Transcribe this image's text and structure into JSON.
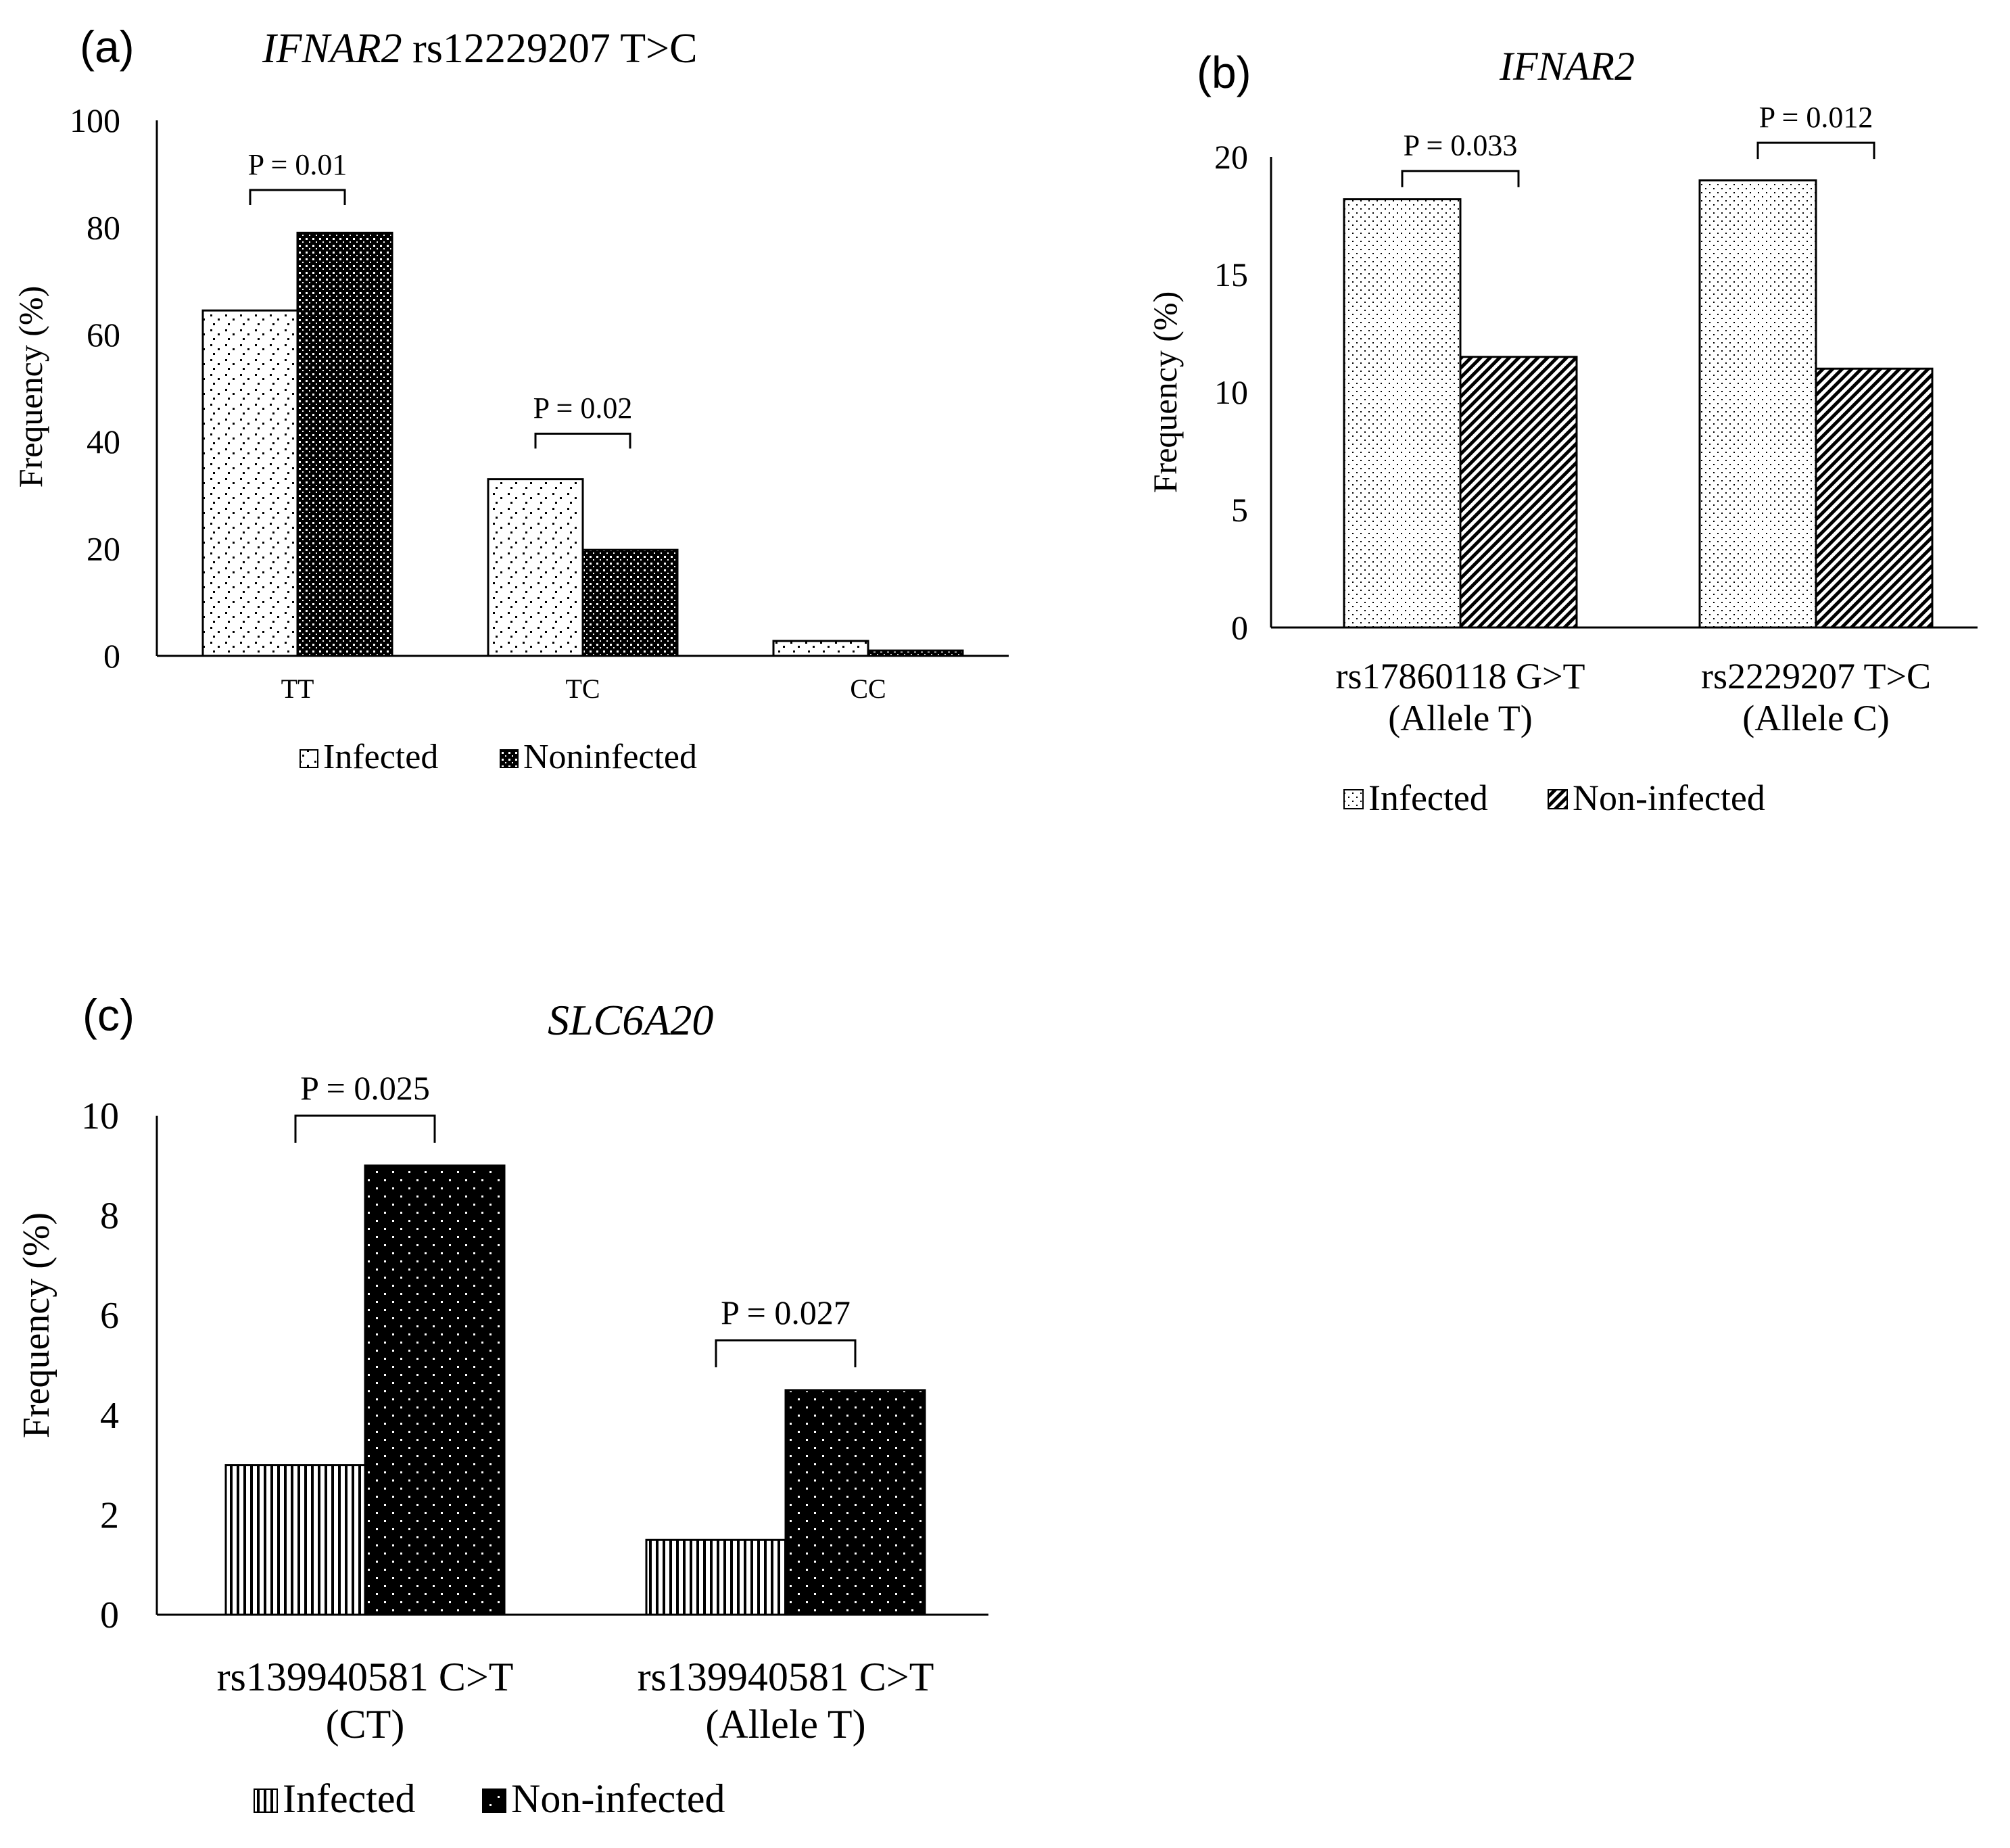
{
  "figure": {
    "colors": {
      "ink": "#000000",
      "paper": "#ffffff"
    }
  },
  "chart_data": [
    {
      "panel": "(a)",
      "type": "bar",
      "title_gene": "IFNAR2",
      "title_rest": " rs12229207 T>C",
      "xlabel": "",
      "ylabel": "Frequency (%)",
      "ylim": [
        0,
        100
      ],
      "yticks": [
        0,
        20,
        40,
        60,
        80,
        100
      ],
      "categories": [
        "TT",
        "TC",
        "CC"
      ],
      "series": [
        {
          "name": "Infected",
          "pattern": "a-infected",
          "values": [
            64.5,
            33,
            2.8
          ]
        },
        {
          "name": "Noninfected",
          "pattern": "a-noninfected",
          "values": [
            79,
            19.8,
            1
          ]
        }
      ],
      "annotations": [
        {
          "category": 0,
          "label": "P = 0.01",
          "bracket_top": 87
        },
        {
          "category": 1,
          "label": "P = 0.02",
          "bracket_top": 41.5
        }
      ],
      "legend": "bottom"
    },
    {
      "panel": "(b)",
      "type": "bar",
      "title_gene": "IFNAR2",
      "title_rest": "",
      "xlabel": "",
      "ylabel": "Frequency (%)",
      "ylim": [
        0,
        20
      ],
      "yticks": [
        0,
        5,
        10,
        15,
        20
      ],
      "categories": [
        [
          "rs17860118 G>T",
          "(Allele T)"
        ],
        [
          "rs2229207 T>C",
          "(Allele C)"
        ]
      ],
      "series": [
        {
          "name": "Infected",
          "pattern": "b-infected",
          "values": [
            18.2,
            19
          ]
        },
        {
          "name": "Non-infected",
          "pattern": "b-noninfected",
          "values": [
            11.5,
            11
          ]
        }
      ],
      "annotations": [
        {
          "category": 0,
          "label": "P = 0.033",
          "bracket_top": 19.4
        },
        {
          "category": 1,
          "label": "P = 0.012",
          "bracket_top": 20.6
        }
      ],
      "legend": "bottom"
    },
    {
      "panel": "(c)",
      "type": "bar",
      "title_gene": "SLC6A20",
      "title_rest": "",
      "xlabel": "",
      "ylabel": "Frequency (%)",
      "ylim": [
        0,
        10
      ],
      "yticks": [
        0,
        2,
        4,
        6,
        8,
        10
      ],
      "categories": [
        [
          "rs139940581 C>T",
          "(CT)"
        ],
        [
          "rs139940581 C>T",
          "(Allele T)"
        ]
      ],
      "series": [
        {
          "name": "Infected",
          "pattern": "c-infected",
          "values": [
            3,
            1.5
          ]
        },
        {
          "name": "Non-infected",
          "pattern": "c-noninfected",
          "values": [
            9,
            4.5
          ]
        }
      ],
      "annotations": [
        {
          "category": 0,
          "label": "P = 0.025",
          "bracket_top": 10
        },
        {
          "category": 1,
          "label": "P = 0.027",
          "bracket_top": 5.5
        }
      ],
      "legend": "bottom"
    }
  ]
}
